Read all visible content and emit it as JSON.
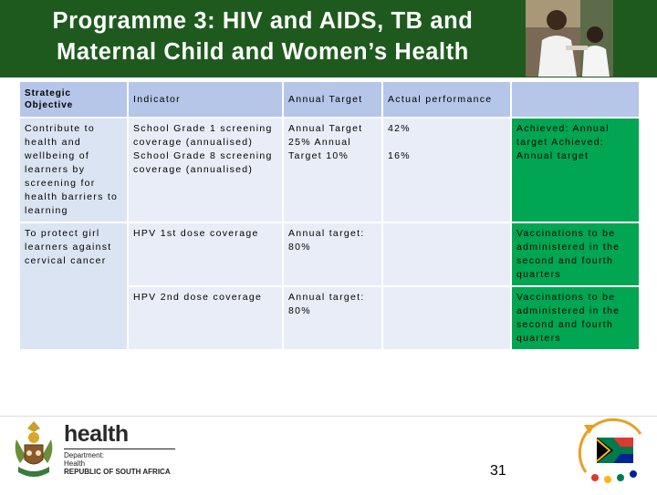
{
  "title_line1": "Programme 3: HIV and AIDS, TB and",
  "title_line2": "Maternal Child and Women’s Health",
  "table": {
    "headers": [
      "Strategic Objective",
      "Indicator",
      "Annual Target",
      "Actual performance",
      ""
    ],
    "rows": [
      {
        "objective": "Contribute to health and wellbeing of learners by screening for health barriers to learning",
        "indicator": "School Grade 1 screening coverage (annualised) School Grade 8 screening coverage (annualised)",
        "target": "Annual Target 25% Annual Target 10%",
        "actual_1": "42%",
        "actual_2": "16%",
        "status": "Achieved: Annual target Achieved: Annual target"
      },
      {
        "objective": "To protect girl learners against cervical cancer",
        "indicator": "HPV 1st dose coverage",
        "target": "Annual target: 80%",
        "actual": "",
        "status": "Vaccinations to be administered in the second and fourth quarters"
      },
      {
        "objective": "",
        "indicator": "HPV 2nd dose coverage",
        "target": "Annual target: 80%",
        "actual": "",
        "status": "Vaccinations to be administered in the second and fourth quarters"
      }
    ]
  },
  "footer": {
    "logo_word": "health",
    "dept_line1": "Department:",
    "dept_line2": "Health",
    "dept_line3": "REPUBLIC OF SOUTH AFRICA",
    "page_number": "31"
  },
  "colors": {
    "header_band": "#1e5a1e",
    "table_header": "#b5c6e8",
    "cell_light": "#dbe4f2",
    "achieved": "#00a651"
  }
}
